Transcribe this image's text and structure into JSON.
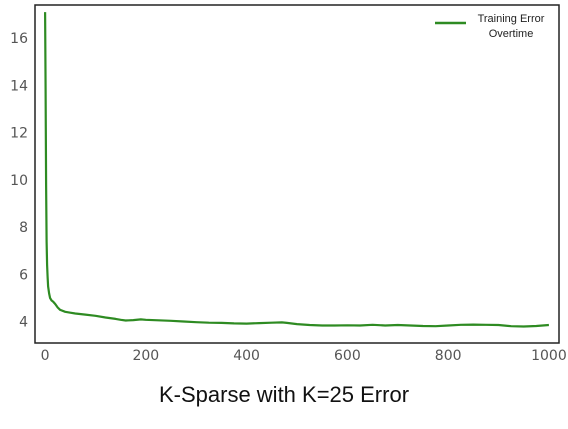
{
  "chart_data": {
    "type": "line",
    "title": "",
    "xlabel": "",
    "ylabel": "",
    "xlim": [
      -20,
      1020
    ],
    "ylim": [
      3.1,
      17.4
    ],
    "x_ticks": [
      0,
      200,
      400,
      600,
      800,
      1000
    ],
    "y_ticks": [
      4,
      6,
      8,
      10,
      12,
      14,
      16
    ],
    "grid": false,
    "legend_position": "top-right",
    "series": [
      {
        "name": "Training Error Overtime",
        "color": "#2e8b22",
        "x": [
          0,
          1,
          2,
          3,
          4,
          5,
          6,
          8,
          10,
          13,
          16,
          20,
          25,
          30,
          40,
          50,
          60,
          80,
          100,
          120,
          140,
          150,
          160,
          175,
          190,
          200,
          225,
          250,
          275,
          300,
          325,
          350,
          375,
          400,
          425,
          450,
          470,
          480,
          500,
          525,
          550,
          575,
          600,
          625,
          650,
          675,
          700,
          725,
          750,
          775,
          800,
          825,
          850,
          875,
          900,
          925,
          950,
          975,
          1000
        ],
        "y": [
          17.1,
          13.8,
          9.8,
          7.4,
          6.4,
          5.9,
          5.5,
          5.2,
          5.0,
          4.9,
          4.85,
          4.75,
          4.6,
          4.5,
          4.42,
          4.38,
          4.35,
          4.3,
          4.25,
          4.18,
          4.12,
          4.08,
          4.05,
          4.07,
          4.1,
          4.08,
          4.06,
          4.04,
          4.01,
          3.98,
          3.96,
          3.95,
          3.93,
          3.92,
          3.94,
          3.96,
          3.97,
          3.95,
          3.9,
          3.86,
          3.84,
          3.84,
          3.85,
          3.84,
          3.87,
          3.84,
          3.86,
          3.84,
          3.82,
          3.81,
          3.84,
          3.87,
          3.88,
          3.87,
          3.86,
          3.81,
          3.8,
          3.82,
          3.86
        ]
      }
    ]
  },
  "caption": "K-Sparse with K=25 Error",
  "legend": {
    "line1": "Training Error",
    "line2": "Overtime"
  },
  "colors": {
    "line": "#2e8b22",
    "frame": "#222222",
    "tick_text": "#555555"
  }
}
